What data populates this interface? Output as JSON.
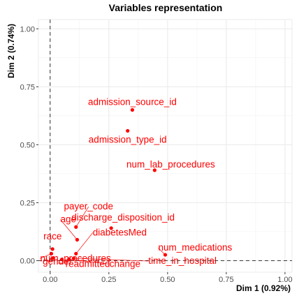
{
  "chart_data": {
    "type": "scatter",
    "title": "Variables representation",
    "xlabel": "Dim 1 (0.92%)",
    "ylabel": "Dim 2 (0.74%)",
    "xlim": [
      -0.05,
      1.03
    ],
    "ylim": [
      -0.05,
      1.04
    ],
    "x_ticks": [
      "0.00",
      "0.25",
      "0.50",
      "0.75",
      "1.00"
    ],
    "y_ticks": [
      "0.00",
      "0.25",
      "0.50",
      "0.75",
      "1.00"
    ],
    "grid": true,
    "point_color": "#ff0000",
    "points": [
      {
        "name": "admission_source_id",
        "x": 0.35,
        "y": 0.65
      },
      {
        "name": "admission_type_id",
        "x": 0.33,
        "y": 0.56
      },
      {
        "name": "num_lab_procedures",
        "x": 0.445,
        "y": 0.39
      },
      {
        "name": "payer_code",
        "x": 0.11,
        "y": 0.145
      },
      {
        "name": "age",
        "x": 0.115,
        "y": 0.09
      },
      {
        "name": "discharge_disposition_id",
        "x": 0.26,
        "y": 0.14
      },
      {
        "name": "diabetesMed",
        "x": 0.11,
        "y": 0.03
      },
      {
        "name": "race",
        "x": 0.01,
        "y": 0.05
      },
      {
        "name": "num_procedures",
        "x": 0.005,
        "y": 0.03
      },
      {
        "name": "num_medications",
        "x": 0.49,
        "y": 0.025
      },
      {
        "name": "gender",
        "x": 0.01,
        "y": 0.01
      },
      {
        "name": "readmitted",
        "x": 0.05,
        "y": 0.005
      },
      {
        "name": "change",
        "x": 0.08,
        "y": 0.006
      },
      {
        "name": "time_in_hospital",
        "x": 0.1,
        "y": 0.01
      }
    ]
  }
}
